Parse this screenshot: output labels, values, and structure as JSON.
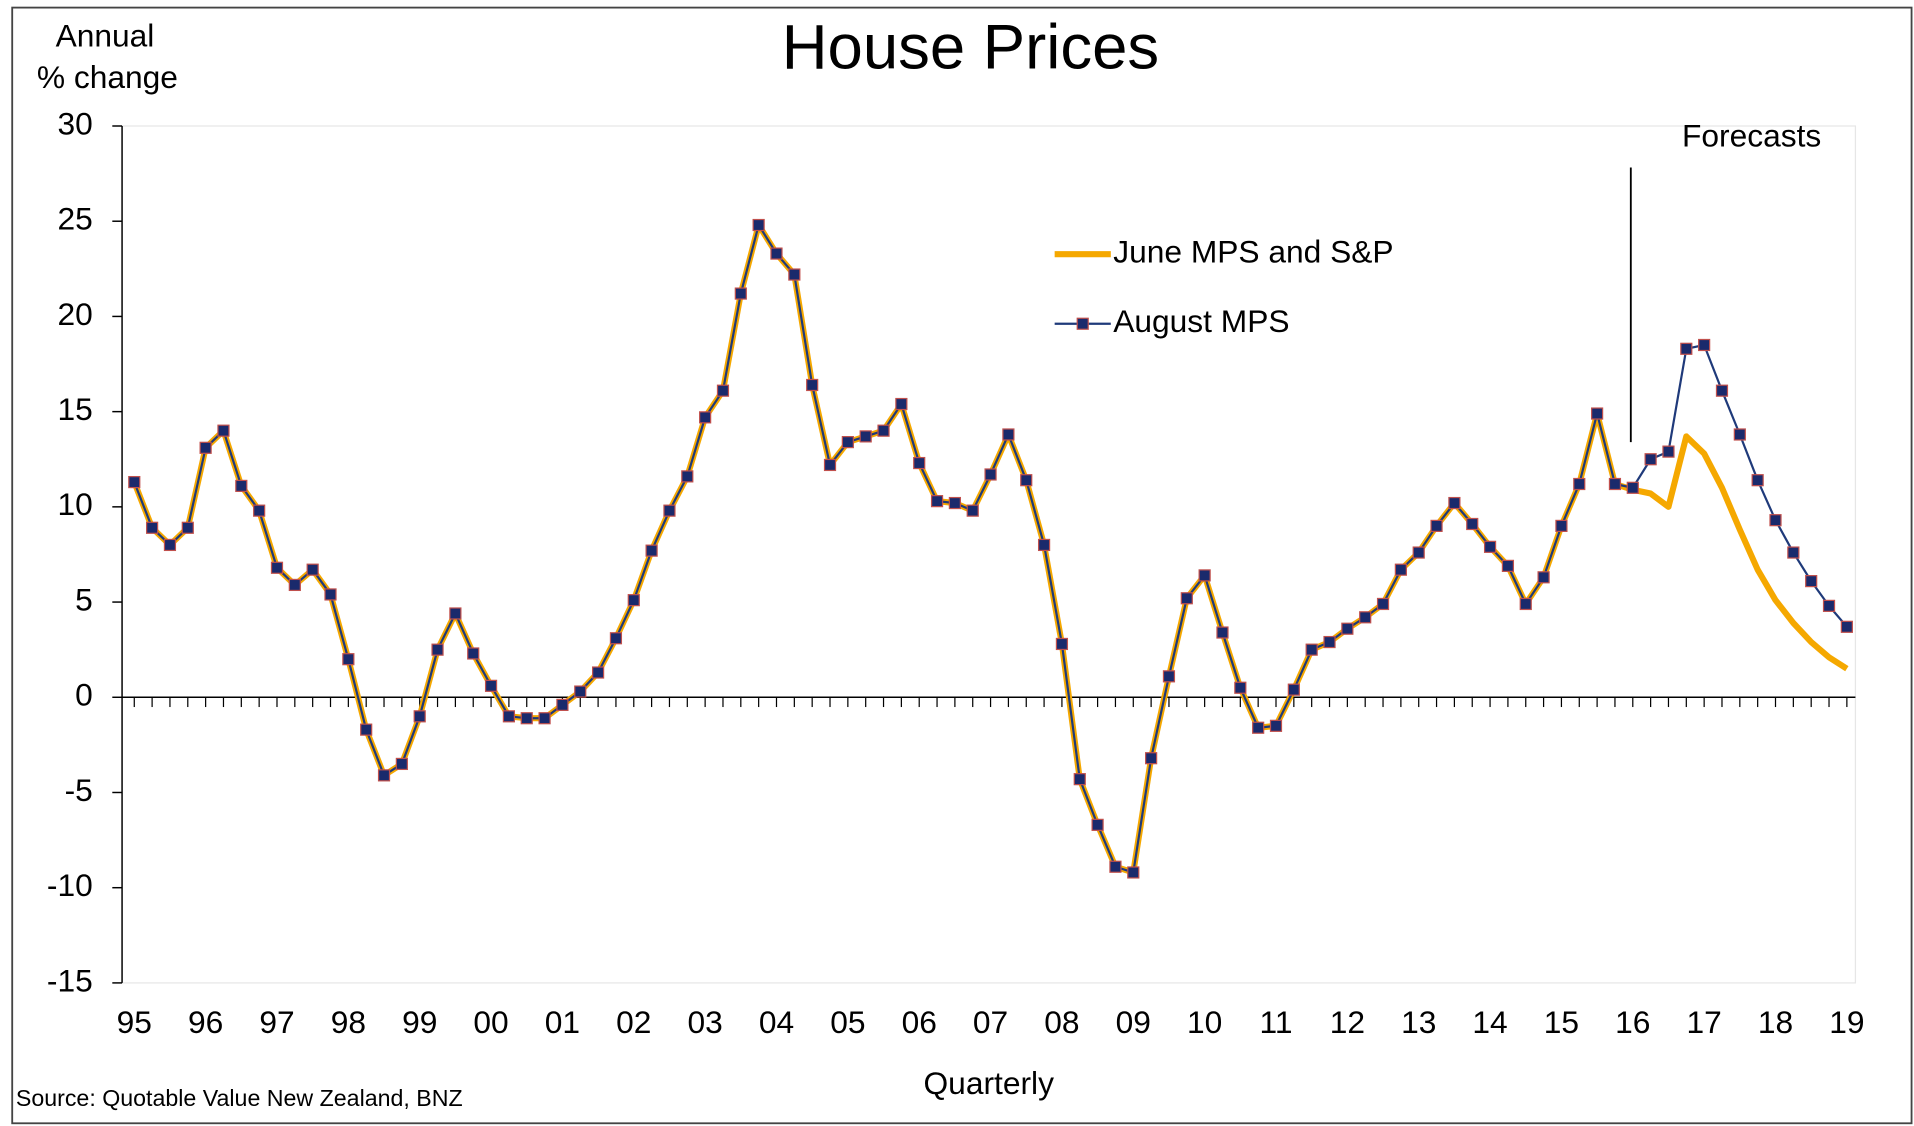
{
  "chart_data": {
    "type": "line",
    "title": "House Prices",
    "ylabel": [
      "Annual",
      "% change"
    ],
    "xlabel": "Quarterly",
    "source": "Source: Quotable Value New Zealand, BNZ",
    "annotation": "Forecasts",
    "categories": [
      "95",
      null,
      null,
      null,
      "96",
      null,
      null,
      null,
      "97",
      null,
      null,
      null,
      "98",
      null,
      null,
      null,
      "99",
      null,
      null,
      null,
      "00",
      null,
      null,
      null,
      "01",
      null,
      null,
      null,
      "02",
      null,
      null,
      null,
      "03",
      null,
      null,
      null,
      "04",
      null,
      null,
      null,
      "05",
      null,
      null,
      null,
      "06",
      null,
      null,
      null,
      "07",
      null,
      null,
      null,
      "08",
      null,
      null,
      null,
      "09",
      null,
      null,
      null,
      "10",
      null,
      null,
      null,
      "11",
      null,
      null,
      null,
      "12",
      null,
      null,
      null,
      "13",
      null,
      null,
      null,
      "14",
      null,
      null,
      null,
      "15",
      null,
      null,
      null,
      "16",
      null,
      null,
      null,
      "17",
      null,
      null,
      null,
      "18",
      null,
      null,
      null,
      "19"
    ],
    "series": [
      {
        "name": "June MPS and S&P",
        "color": "#f5a800",
        "values": [
          11.3,
          8.9,
          8.0,
          8.9,
          13.1,
          14.0,
          11.1,
          9.8,
          6.8,
          5.9,
          6.7,
          5.4,
          2.0,
          -1.7,
          -4.1,
          -3.5,
          -1.0,
          2.5,
          4.4,
          2.3,
          0.6,
          -1.0,
          -1.1,
          -1.1,
          -0.4,
          0.3,
          1.3,
          3.1,
          5.1,
          7.7,
          9.8,
          11.6,
          14.7,
          16.1,
          21.2,
          24.8,
          23.3,
          22.2,
          16.4,
          12.2,
          13.4,
          13.7,
          14.0,
          15.4,
          12.3,
          10.3,
          10.2,
          9.8,
          11.7,
          13.8,
          11.4,
          8.0,
          2.8,
          -4.3,
          -6.7,
          -8.9,
          -9.2,
          -3.2,
          1.1,
          5.2,
          6.4,
          3.4,
          0.5,
          -1.6,
          -1.5,
          0.4,
          2.5,
          2.9,
          3.6,
          4.2,
          4.9,
          6.7,
          7.6,
          9.0,
          10.2,
          9.1,
          7.9,
          6.9,
          4.9,
          6.3,
          9.0,
          11.2,
          14.9,
          11.2,
          10.9,
          10.7,
          10.0,
          13.7,
          12.8,
          11.0,
          8.8,
          6.7,
          5.1,
          3.9,
          2.9,
          2.1,
          1.5
        ]
      },
      {
        "name": "August MPS",
        "color": "#1f3a7a",
        "marker_fill": "#1a2a6c",
        "marker_edge": "#c0504d",
        "values": [
          11.3,
          8.9,
          8.0,
          8.9,
          13.1,
          14.0,
          11.1,
          9.8,
          6.8,
          5.9,
          6.7,
          5.4,
          2.0,
          -1.7,
          -4.1,
          -3.5,
          -1.0,
          2.5,
          4.4,
          2.3,
          0.6,
          -1.0,
          -1.1,
          -1.1,
          -0.4,
          0.3,
          1.3,
          3.1,
          5.1,
          7.7,
          9.8,
          11.6,
          14.7,
          16.1,
          21.2,
          24.8,
          23.3,
          22.2,
          16.4,
          12.2,
          13.4,
          13.7,
          14.0,
          15.4,
          12.3,
          10.3,
          10.2,
          9.8,
          11.7,
          13.8,
          11.4,
          8.0,
          2.8,
          -4.3,
          -6.7,
          -8.9,
          -9.2,
          -3.2,
          1.1,
          5.2,
          6.4,
          3.4,
          0.5,
          -1.6,
          -1.5,
          0.4,
          2.5,
          2.9,
          3.6,
          4.2,
          4.9,
          6.7,
          7.6,
          9.0,
          10.2,
          9.1,
          7.9,
          6.9,
          4.9,
          6.3,
          9.0,
          11.2,
          14.9,
          11.2,
          11.0,
          12.5,
          12.9,
          18.3,
          18.5,
          16.1,
          13.8,
          11.4,
          9.3,
          7.6,
          6.1,
          4.8,
          3.7
        ]
      }
    ],
    "ylim": [
      -15,
      30
    ],
    "yticks": [
      -15,
      -10,
      -5,
      0,
      5,
      10,
      15,
      20,
      25,
      30
    ],
    "grid": false
  }
}
